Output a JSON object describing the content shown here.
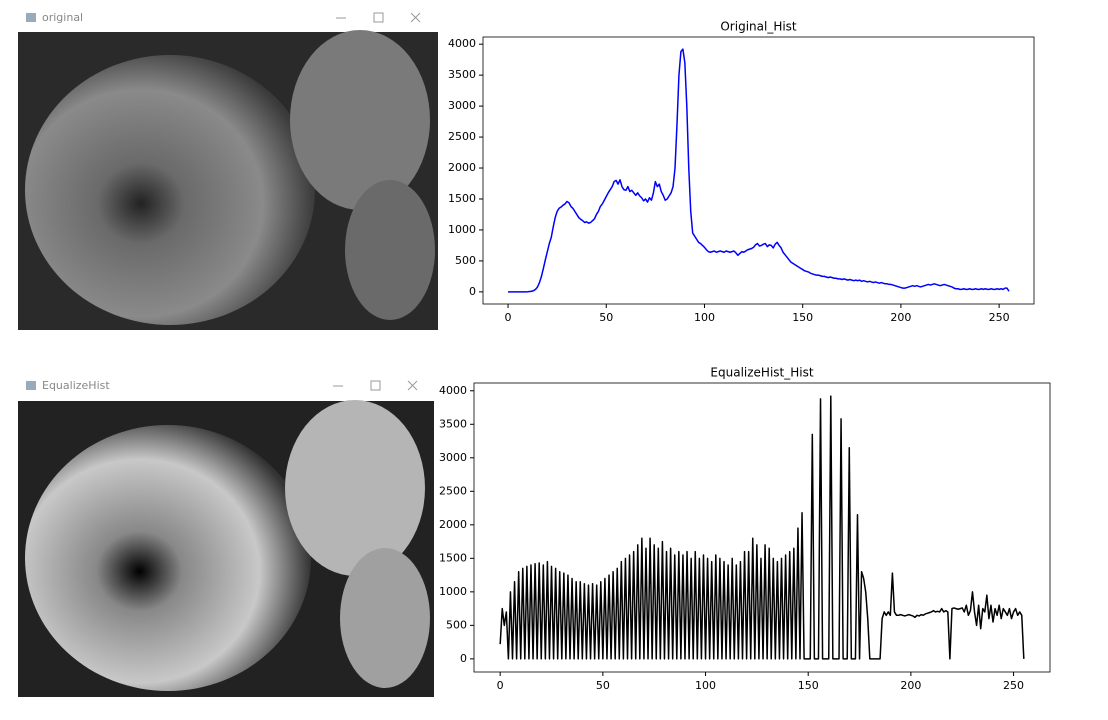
{
  "windows": [
    {
      "title": "original"
    },
    {
      "title": "EqualizeHist"
    }
  ],
  "chart_data": [
    {
      "type": "line",
      "title": "Original_Hist",
      "color": "#0000ff",
      "x": [
        0,
        1,
        2,
        3,
        4,
        5,
        6,
        7,
        8,
        9,
        10,
        11,
        12,
        13,
        14,
        15,
        16,
        17,
        18,
        19,
        20,
        21,
        22,
        23,
        24,
        25,
        26,
        27,
        28,
        29,
        30,
        31,
        32,
        33,
        34,
        35,
        36,
        37,
        38,
        39,
        40,
        41,
        42,
        43,
        44,
        45,
        46,
        47,
        48,
        49,
        50,
        51,
        52,
        53,
        54,
        55,
        56,
        57,
        58,
        59,
        60,
        61,
        62,
        63,
        64,
        65,
        66,
        67,
        68,
        69,
        70,
        71,
        72,
        73,
        74,
        75,
        76,
        77,
        78,
        79,
        80,
        81,
        82,
        83,
        84,
        85,
        86,
        87,
        88,
        89,
        90,
        91,
        92,
        93,
        94,
        95,
        96,
        97,
        98,
        99,
        100,
        101,
        102,
        103,
        104,
        105,
        106,
        107,
        108,
        109,
        110,
        111,
        112,
        113,
        114,
        115,
        116,
        117,
        118,
        119,
        120,
        121,
        122,
        123,
        124,
        125,
        126,
        127,
        128,
        129,
        130,
        131,
        132,
        133,
        134,
        135,
        136,
        137,
        138,
        139,
        140,
        141,
        142,
        143,
        144,
        145,
        146,
        147,
        148,
        149,
        150,
        151,
        152,
        153,
        154,
        155,
        156,
        157,
        158,
        159,
        160,
        161,
        162,
        163,
        164,
        165,
        166,
        167,
        168,
        169,
        170,
        171,
        172,
        173,
        174,
        175,
        176,
        177,
        178,
        179,
        180,
        181,
        182,
        183,
        184,
        185,
        186,
        187,
        188,
        189,
        190,
        191,
        192,
        193,
        194,
        195,
        196,
        197,
        198,
        199,
        200,
        201,
        202,
        203,
        204,
        205,
        206,
        207,
        208,
        209,
        210,
        211,
        212,
        213,
        214,
        215,
        216,
        217,
        218,
        219,
        220,
        221,
        222,
        223,
        224,
        225,
        226,
        227,
        228,
        229,
        230,
        231,
        232,
        233,
        234,
        235,
        236,
        237,
        238,
        239,
        240,
        241,
        242,
        243,
        244,
        245,
        246,
        247,
        248,
        249,
        250,
        251,
        252,
        253,
        254,
        255
      ],
      "values": [
        0,
        0,
        0,
        0,
        0,
        0,
        0,
        0,
        0,
        0,
        2,
        5,
        10,
        20,
        40,
        80,
        150,
        250,
        380,
        520,
        650,
        780,
        880,
        1050,
        1200,
        1300,
        1350,
        1370,
        1400,
        1420,
        1460,
        1440,
        1380,
        1350,
        1300,
        1250,
        1200,
        1170,
        1150,
        1120,
        1130,
        1110,
        1120,
        1150,
        1180,
        1250,
        1300,
        1380,
        1420,
        1480,
        1540,
        1600,
        1650,
        1700,
        1780,
        1800,
        1740,
        1810,
        1700,
        1650,
        1640,
        1700,
        1620,
        1640,
        1600,
        1560,
        1600,
        1550,
        1520,
        1470,
        1500,
        1450,
        1520,
        1480,
        1600,
        1780,
        1700,
        1740,
        1620,
        1560,
        1480,
        1500,
        1550,
        1600,
        1700,
        2000,
        2700,
        3500,
        3880,
        3920,
        3700,
        3000,
        2000,
        1300,
        950,
        900,
        850,
        800,
        780,
        750,
        720,
        680,
        650,
        640,
        650,
        660,
        640,
        650,
        660,
        650,
        640,
        660,
        650,
        640,
        650,
        660,
        630,
        590,
        620,
        650,
        640,
        660,
        680,
        690,
        700,
        720,
        760,
        780,
        740,
        750,
        770,
        780,
        730,
        760,
        750,
        710,
        770,
        800,
        750,
        710,
        640,
        600,
        560,
        520,
        480,
        460,
        440,
        420,
        400,
        380,
        360,
        340,
        330,
        320,
        300,
        290,
        280,
        270,
        270,
        260,
        250,
        250,
        240,
        230,
        240,
        230,
        220,
        220,
        210,
        210,
        200,
        210,
        200,
        190,
        200,
        190,
        180,
        190,
        180,
        190,
        170,
        180,
        170,
        160,
        170,
        160,
        150,
        160,
        150,
        140,
        150,
        140,
        130,
        130,
        120,
        120,
        110,
        100,
        90,
        80,
        70,
        60,
        60,
        70,
        80,
        90,
        100,
        90,
        100,
        90,
        80,
        90,
        100,
        110,
        120,
        110,
        120,
        130,
        120,
        110,
        100,
        110,
        120,
        110,
        100,
        90,
        80,
        60,
        50,
        50,
        40,
        40,
        50,
        40,
        40,
        50,
        40,
        40,
        50,
        40,
        40,
        50,
        40,
        50,
        40,
        40,
        50,
        40,
        40,
        50,
        40,
        50,
        40,
        60,
        60,
        10
      ],
      "xlim": [
        -12.75,
        267.75
      ],
      "xticks": [
        0,
        50,
        100,
        150,
        200,
        250
      ],
      "ylim": [
        -196,
        4116
      ],
      "yticks": [
        0,
        500,
        1000,
        1500,
        2000,
        2500,
        3000,
        3500,
        4000
      ]
    },
    {
      "type": "line",
      "title": "EqualizeHist_Hist",
      "color": "#000000",
      "x": [
        0,
        1,
        2,
        3,
        4,
        5,
        6,
        7,
        8,
        9,
        10,
        11,
        12,
        13,
        14,
        15,
        16,
        17,
        18,
        19,
        20,
        21,
        22,
        23,
        24,
        25,
        26,
        27,
        28,
        29,
        30,
        31,
        32,
        33,
        34,
        35,
        36,
        37,
        38,
        39,
        40,
        41,
        42,
        43,
        44,
        45,
        46,
        47,
        48,
        49,
        50,
        51,
        52,
        53,
        54,
        55,
        56,
        57,
        58,
        59,
        60,
        61,
        62,
        63,
        64,
        65,
        66,
        67,
        68,
        69,
        70,
        71,
        72,
        73,
        74,
        75,
        76,
        77,
        78,
        79,
        80,
        81,
        82,
        83,
        84,
        85,
        86,
        87,
        88,
        89,
        90,
        91,
        92,
        93,
        94,
        95,
        96,
        97,
        98,
        99,
        100,
        101,
        102,
        103,
        104,
        105,
        106,
        107,
        108,
        109,
        110,
        111,
        112,
        113,
        114,
        115,
        116,
        117,
        118,
        119,
        120,
        121,
        122,
        123,
        124,
        125,
        126,
        127,
        128,
        129,
        130,
        131,
        132,
        133,
        134,
        135,
        136,
        137,
        138,
        139,
        140,
        141,
        142,
        143,
        144,
        145,
        146,
        147,
        148,
        149,
        150,
        151,
        152,
        153,
        154,
        155,
        156,
        157,
        158,
        159,
        160,
        161,
        162,
        163,
        164,
        165,
        166,
        167,
        168,
        169,
        170,
        171,
        172,
        173,
        174,
        175,
        176,
        177,
        178,
        179,
        180,
        181,
        182,
        183,
        184,
        185,
        186,
        187,
        188,
        189,
        190,
        191,
        192,
        193,
        194,
        195,
        196,
        197,
        198,
        199,
        200,
        201,
        202,
        203,
        204,
        205,
        206,
        207,
        208,
        209,
        210,
        211,
        212,
        213,
        214,
        215,
        216,
        217,
        218,
        219,
        220,
        221,
        222,
        223,
        224,
        225,
        226,
        227,
        228,
        229,
        230,
        231,
        232,
        233,
        234,
        235,
        236,
        237,
        238,
        239,
        240,
        241,
        242,
        243,
        244,
        245,
        246,
        247,
        248,
        249,
        250,
        251,
        252,
        253,
        254,
        255
      ],
      "values": [
        220,
        750,
        500,
        700,
        0,
        1000,
        0,
        1150,
        0,
        1300,
        0,
        1350,
        0,
        1380,
        0,
        1400,
        0,
        1420,
        0,
        1430,
        0,
        1400,
        0,
        1450,
        0,
        1380,
        0,
        1350,
        0,
        1300,
        0,
        1280,
        0,
        1250,
        0,
        1200,
        0,
        1150,
        0,
        1150,
        0,
        1120,
        0,
        1100,
        0,
        1120,
        0,
        1100,
        0,
        1150,
        0,
        1200,
        0,
        1250,
        0,
        1300,
        0,
        1350,
        0,
        1450,
        0,
        1500,
        0,
        1550,
        0,
        1600,
        0,
        1700,
        0,
        1800,
        0,
        1650,
        0,
        1800,
        0,
        1700,
        0,
        1650,
        0,
        1750,
        0,
        1600,
        0,
        1650,
        0,
        1550,
        0,
        1600,
        0,
        1550,
        0,
        1600,
        0,
        1500,
        0,
        1600,
        0,
        1500,
        0,
        1550,
        0,
        1500,
        0,
        1450,
        0,
        1550,
        0,
        1500,
        0,
        1450,
        0,
        1400,
        0,
        1500,
        0,
        1400,
        0,
        1450,
        0,
        1600,
        0,
        1600,
        0,
        1800,
        0,
        1700,
        0,
        1500,
        0,
        1700,
        0,
        1650,
        0,
        1500,
        0,
        1450,
        0,
        1500,
        0,
        1550,
        0,
        1600,
        0,
        1650,
        0,
        1950,
        0,
        2180,
        0,
        0,
        0,
        0,
        3350,
        0,
        0,
        0,
        3880,
        0,
        0,
        0,
        0,
        3920,
        0,
        0,
        0,
        0,
        3580,
        0,
        0,
        0,
        3150,
        0,
        0,
        0,
        2150,
        0,
        1300,
        1200,
        1000,
        600,
        0,
        0,
        0,
        0,
        0,
        0,
        600,
        700,
        650,
        700,
        650,
        1280,
        700,
        650,
        650,
        660,
        650,
        640,
        650,
        660,
        650,
        640,
        620,
        650,
        640,
        660,
        650,
        670,
        680,
        690,
        700,
        720,
        700,
        710,
        700,
        750,
        700,
        720,
        700,
        0,
        750,
        760,
        750,
        740,
        750,
        760,
        700,
        800,
        650,
        720,
        1000,
        700,
        500,
        800,
        450,
        750,
        700,
        950,
        600,
        800,
        550,
        750,
        650,
        800,
        600,
        750,
        700,
        650,
        750,
        600,
        700,
        750,
        650,
        700,
        650,
        0
      ],
      "xlim": [
        -12.75,
        267.75
      ],
      "xticks": [
        0,
        50,
        100,
        150,
        200,
        250
      ],
      "ylim": [
        -196,
        4116
      ],
      "yticks": [
        0,
        500,
        1000,
        1500,
        2000,
        2500,
        3000,
        3500,
        4000
      ]
    }
  ]
}
